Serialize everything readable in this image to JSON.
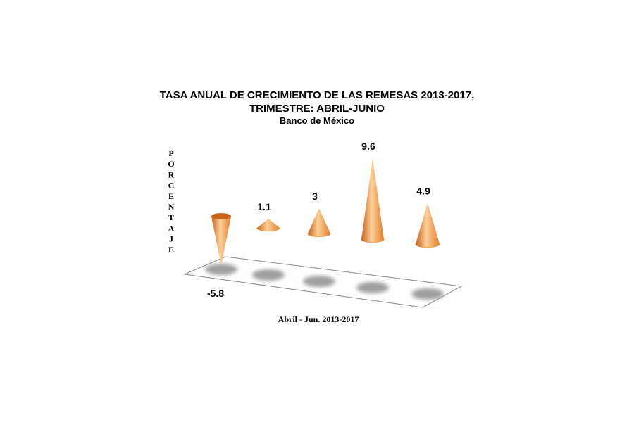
{
  "chart_data": {
    "type": "bar",
    "title": "TASA ANUAL  DE CRECIMIENTO DE LAS REMESAS 2013-2017,",
    "subtitle": "TRIMESTRE: ABRIL-JUNIO",
    "source": "Banco de México",
    "ylabel": "PORCENTAJE",
    "xlabel": "Abril - Jun. 2013-2017",
    "categories": [],
    "values": [
      -5.8,
      1.1,
      3,
      9.6,
      4.9
    ],
    "labels": [
      "-5.8",
      "1.1",
      "3",
      "9.6",
      "4.9"
    ],
    "ylim": [
      -5.8,
      9.6
    ],
    "grid": false,
    "legend": "none",
    "colors": {
      "cone_light": "#fcd09a",
      "cone_mid": "#f39a45",
      "cone_dark": "#c9621a",
      "shadow": "#9e9e9e",
      "floor_stroke": "#888888"
    }
  }
}
